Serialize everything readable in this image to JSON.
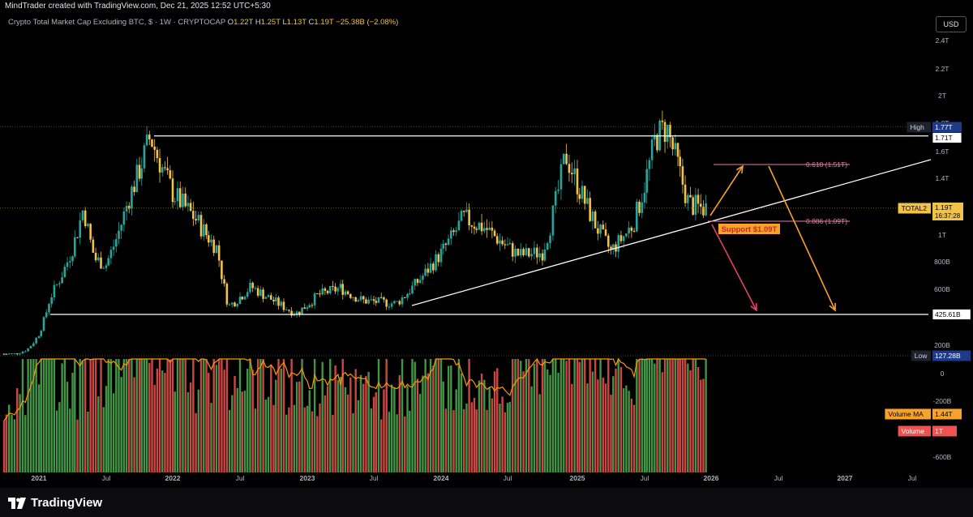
{
  "header": {
    "creator_line": "MindTrader created with TradingView.com, Dec 21, 2025 12:52 UTC+5:30"
  },
  "legend": {
    "symbol": "Crypto Total Market Cap Excluding BTC, $ · 1W · CRYPTOCAP",
    "open_label": "O",
    "open": "1.22T",
    "high_label": "H",
    "high": "1.25T",
    "low_label": "L",
    "low": "1.13T",
    "close_label": "C",
    "close": "1.19T",
    "change": "−25.38B (−2.08%)"
  },
  "currency_button": "USD",
  "footer": {
    "brand": "TradingView"
  },
  "colors": {
    "bull": "#26a69a",
    "bear": "#f0c24a",
    "vol_up": "#4caf50",
    "vol_down": "#ef5350",
    "vol_ma": "#ff9800",
    "fib": "#e57fa3",
    "arrow_orange": "#f7a32b",
    "arrow_red": "#e9416a"
  },
  "chart_data": {
    "type": "candlestick",
    "title": "Crypto Total Market Cap Excluding BTC, $ · 1W · CRYPTOCAP",
    "y_axis_ticks": [
      "2.4T",
      "2.2T",
      "2T",
      "1.8T",
      "1.6T",
      "1.4T",
      "1T",
      "800B",
      "600B",
      "400B",
      "200B"
    ],
    "x_axis_ticks": [
      "2021",
      "Jul",
      "2022",
      "Jul",
      "2023",
      "Jul",
      "2024",
      "Jul",
      "2025",
      "Jul",
      "2026",
      "Jul",
      "2027",
      "Jul"
    ],
    "price_path": [
      {
        "date": "2020-11",
        "value": 140
      },
      {
        "date": "2020-12",
        "value": 170
      },
      {
        "date": "2021-01",
        "value": 280
      },
      {
        "date": "2021-02",
        "value": 540
      },
      {
        "date": "2021-04",
        "value": 900
      },
      {
        "date": "2021-05",
        "value": 1200
      },
      {
        "date": "2021-06",
        "value": 820
      },
      {
        "date": "2021-07",
        "value": 780
      },
      {
        "date": "2021-09",
        "value": 1250
      },
      {
        "date": "2021-11",
        "value": 1710
      },
      {
        "date": "2022-01",
        "value": 1300
      },
      {
        "date": "2022-03",
        "value": 1120
      },
      {
        "date": "2022-05",
        "value": 900
      },
      {
        "date": "2022-06",
        "value": 480
      },
      {
        "date": "2022-08",
        "value": 620
      },
      {
        "date": "2022-10",
        "value": 520
      },
      {
        "date": "2022-12",
        "value": 430
      },
      {
        "date": "2023-02",
        "value": 560
      },
      {
        "date": "2023-04",
        "value": 610
      },
      {
        "date": "2023-06",
        "value": 520
      },
      {
        "date": "2023-09",
        "value": 500
      },
      {
        "date": "2023-12",
        "value": 760
      },
      {
        "date": "2024-03",
        "value": 1120
      },
      {
        "date": "2024-05",
        "value": 1050
      },
      {
        "date": "2024-08",
        "value": 850
      },
      {
        "date": "2024-10",
        "value": 870
      },
      {
        "date": "2024-12",
        "value": 1580
      },
      {
        "date": "2025-02",
        "value": 1180
      },
      {
        "date": "2025-04",
        "value": 880
      },
      {
        "date": "2025-06",
        "value": 1080
      },
      {
        "date": "2025-08",
        "value": 1700
      },
      {
        "date": "2025-09",
        "value": 1770
      },
      {
        "date": "2025-10",
        "value": 1500
      },
      {
        "date": "2025-11",
        "value": 1220
      },
      {
        "date": "2025-12",
        "value": 1190
      }
    ],
    "levels": {
      "high": "1.77T",
      "resistance": "1.71T",
      "last": "1.19T",
      "countdown": "16:37:28",
      "support_base": "425.61B",
      "low": "127.28B"
    },
    "level_labels": {
      "high": "High",
      "last": "TOTAL2",
      "low": "Low"
    },
    "fib_levels": [
      {
        "label": "0.618 (1.51T)"
      },
      {
        "label": "0.886 (1.09T)"
      }
    ],
    "annotations": {
      "support_label": "Support $1.09T"
    },
    "volume": {
      "ma_label": "Volume MA",
      "ma_value": "1.44T",
      "vol_label": "Volume",
      "vol_value": "1T",
      "axis_ticks": [
        "0",
        "-200B",
        "-400B",
        "-600B"
      ]
    }
  }
}
